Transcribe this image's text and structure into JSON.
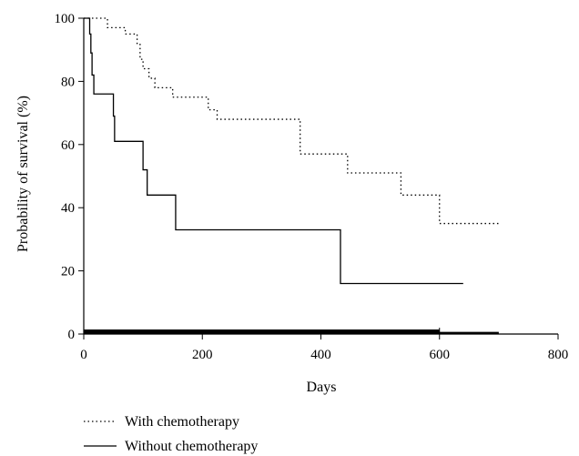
{
  "chart_data": {
    "type": "line",
    "title": "",
    "xlabel": "Days",
    "ylabel": "Probability of survival (%)",
    "xlim": [
      0,
      800
    ],
    "ylim": [
      0,
      100
    ],
    "x_ticks": [
      0,
      200,
      400,
      600,
      800
    ],
    "y_ticks": [
      0,
      20,
      40,
      60,
      80,
      100
    ],
    "grid": false,
    "legend_position": "bottom-left, below plot",
    "series": [
      {
        "name": "With chemotherapy",
        "style": "dotted",
        "x": [
          0,
          20,
          40,
          70,
          90,
          95,
          100,
          110,
          120,
          150,
          200,
          210,
          225,
          260,
          300,
          340,
          365,
          375,
          400,
          445,
          500,
          535,
          580,
          600,
          700
        ],
        "y": [
          100,
          100,
          97,
          95,
          92,
          87,
          84,
          81,
          78,
          75,
          75,
          71,
          68,
          68,
          68,
          68,
          57,
          57,
          57,
          51,
          51,
          44,
          44,
          35,
          35
        ]
      },
      {
        "name": "Without chemotherapy",
        "style": "solid",
        "x": [
          0,
          7,
          10,
          12,
          14,
          17,
          24,
          50,
          52,
          95,
          100,
          107,
          152,
          155,
          430,
          433,
          640
        ],
        "y": [
          100,
          100,
          95,
          89,
          82,
          76,
          76,
          69,
          61,
          61,
          52,
          44,
          44,
          33,
          33,
          16,
          16
        ]
      }
    ]
  }
}
